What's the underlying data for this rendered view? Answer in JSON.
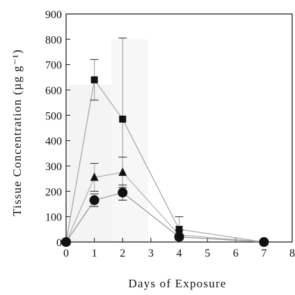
{
  "chart_data": {
    "type": "line",
    "title": "",
    "xlabel": "Days of Exposure",
    "ylabel": "Tissue Concentration (µg g⁻¹)",
    "xlim": [
      0,
      8
    ],
    "ylim": [
      0,
      900
    ],
    "x_ticks": [
      "0",
      "1",
      "2",
      "3",
      "4",
      "5",
      "6",
      "7",
      "8"
    ],
    "y_ticks": [
      "0",
      "100",
      "200",
      "300",
      "400",
      "500",
      "600",
      "700",
      "800",
      "900"
    ],
    "grid": false,
    "legend": "none",
    "series": [
      {
        "marker": "square",
        "color": "#a8a8a8",
        "x": [
          0,
          1,
          2,
          4,
          7
        ],
        "y": [
          0,
          640,
          485,
          50,
          0
        ],
        "err": [
          0,
          80,
          320,
          50,
          0
        ]
      },
      {
        "marker": "triangle",
        "color": "#b4b4b4",
        "x": [
          0,
          1,
          2,
          4,
          7
        ],
        "y": [
          0,
          255,
          275,
          28,
          0
        ],
        "err": [
          0,
          55,
          60,
          18,
          0
        ]
      },
      {
        "marker": "circle",
        "color": "#9a9a9a",
        "x": [
          0,
          1,
          2,
          4,
          7
        ],
        "y": [
          0,
          165,
          195,
          20,
          0
        ],
        "err": [
          0,
          25,
          30,
          12,
          0
        ]
      }
    ]
  }
}
